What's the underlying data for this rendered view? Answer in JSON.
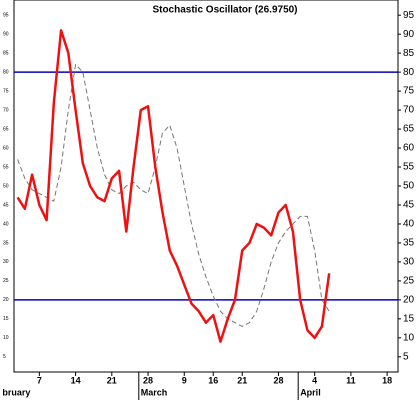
{
  "chart_data": {
    "type": "line",
    "title": "Stochastic Oscillator (26.9750)",
    "categories": [
      null,
      null,
      null,
      "7",
      null,
      null,
      null,
      null,
      "14",
      null,
      null,
      null,
      null,
      "21",
      null,
      null,
      null,
      null,
      "28",
      null,
      null,
      null,
      null,
      "9",
      null,
      null,
      null,
      "16",
      null,
      null,
      null,
      "21",
      null,
      null,
      null,
      null,
      "28",
      null,
      null,
      null,
      null,
      "4",
      null,
      null,
      null,
      null,
      "11",
      null,
      null,
      null,
      null,
      "18",
      null
    ],
    "month_labels": [
      "bruary",
      "March",
      "April"
    ],
    "series": [
      {
        "color": "#ee1111",
        "values": [
          47,
          44,
          53,
          45,
          41,
          72,
          91,
          85,
          70,
          56,
          50,
          47,
          46,
          52,
          54,
          38,
          55,
          70,
          71,
          55,
          43,
          33,
          29,
          24,
          19,
          17,
          14,
          16,
          9,
          15,
          20,
          33,
          35,
          40,
          39,
          37,
          43,
          45,
          38,
          20,
          12,
          10,
          13,
          27,
          null,
          null,
          null,
          null,
          null,
          null,
          null,
          null,
          null
        ]
      },
      {
        "color": "#777777",
        "values": [
          57,
          52,
          49,
          48,
          47,
          46,
          55,
          70,
          82,
          80,
          70,
          60,
          53,
          49,
          48,
          50,
          51,
          49,
          48,
          55,
          64,
          66,
          60,
          50,
          40,
          32,
          26,
          21,
          17,
          15,
          14,
          13,
          14,
          17,
          23,
          30,
          35,
          38,
          40,
          42,
          42,
          33,
          20,
          17,
          null,
          null,
          null,
          null,
          null,
          null,
          null,
          null,
          null
        ]
      }
    ],
    "hlines": [
      {
        "value": 80,
        "color": "#0000cc"
      },
      {
        "value": 20,
        "color": "#0000cc"
      }
    ],
    "ylim": [
      1,
      99
    ],
    "yticks": [
      5,
      10,
      15,
      20,
      25,
      30,
      35,
      40,
      45,
      50,
      55,
      60,
      65,
      70,
      75,
      80,
      85,
      90,
      95
    ]
  }
}
